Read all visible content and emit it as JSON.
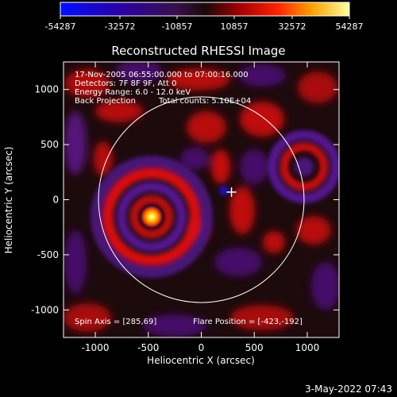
{
  "colorbar": {
    "ticks": [
      "-54287",
      "-32572",
      "-10857",
      "10857",
      "32572",
      "54287"
    ],
    "min": -54287,
    "max": 54287
  },
  "chart_data": {
    "type": "heatmap",
    "title": "Reconstructed RHESSI Image",
    "xlabel": "Heliocentric X (arcsec)",
    "ylabel": "Heliocentric Y (arcsec)",
    "xlim": [
      -1300,
      1300
    ],
    "ylim": [
      -1250,
      1250
    ],
    "xticks": [
      "-1000",
      "-500",
      "0",
      "500",
      "1000"
    ],
    "yticks": [
      "1000",
      "500",
      "0",
      "-500",
      "-1000"
    ],
    "xtick_values": [
      -1000,
      -500,
      0,
      500,
      1000
    ],
    "ytick_values": [
      1000,
      500,
      0,
      -500,
      -1000
    ],
    "annotations": [
      "17-Nov-2005 06:55:00.000 to 07:00:16.000",
      "Detectors: 7F 8F 9F, Att 0",
      "Energy Range: 6.0 - 12.0 keV",
      "Back Projection",
      "Total counts: 5.10E+04"
    ],
    "spin_axis": "Spin Axis = [285,69]",
    "flare_position": "Flare Position = [-423,-192]",
    "flare_xy": [
      -423,
      -192
    ],
    "marker_xy": [
      285,
      69
    ],
    "solar_radius": 970,
    "grid": false
  },
  "footer": {
    "timestamp": "3-May-2022 07:43"
  }
}
